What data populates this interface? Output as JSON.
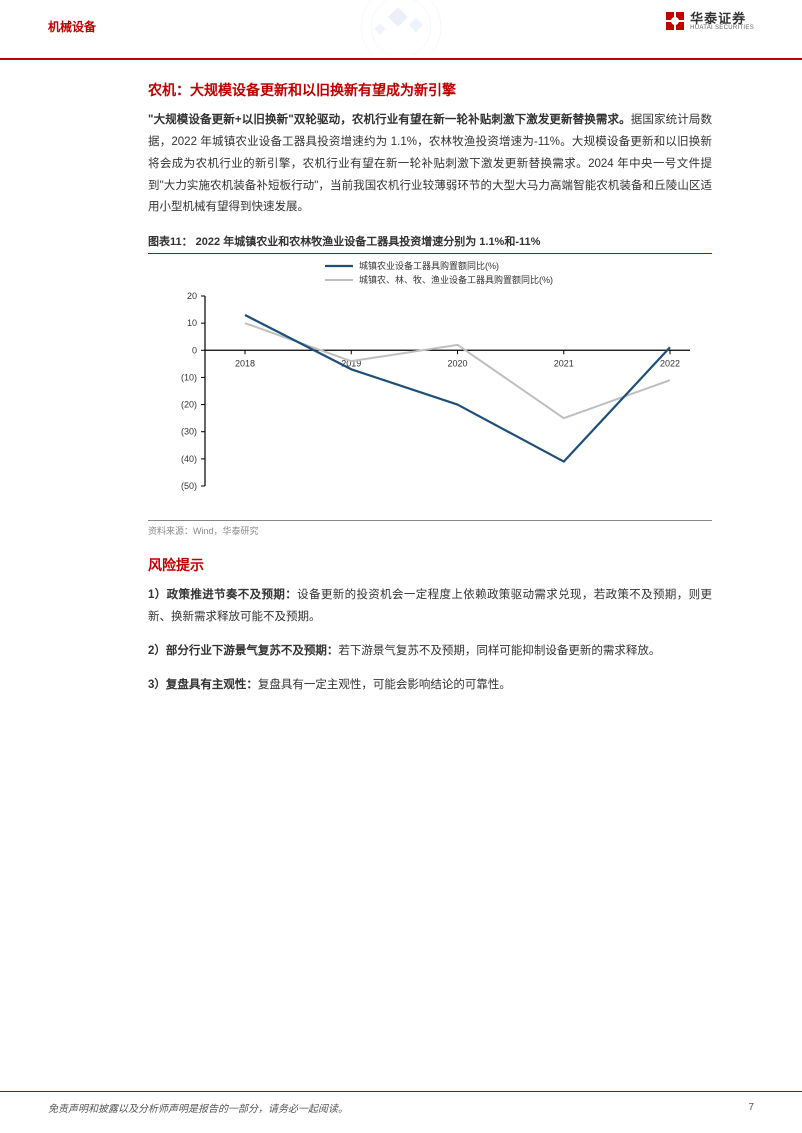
{
  "header": {
    "category": "机械设备",
    "logo_cn": "华泰证券",
    "logo_en": "HUATAI SECURITIES"
  },
  "section1": {
    "title": "农机：大规模设备更新和以旧换新有望成为新引擎",
    "para_bold": "\"大规模设备更新+以旧换新\"双轮驱动，农机行业有望在新一轮补贴刺激下激发更新替换需求。",
    "para_rest": "据国家统计局数据，2022 年城镇农业设备工器具投资增速约为 1.1%，农林牧渔投资增速为-11%。大规模设备更新和以旧换新将会成为农机行业的新引擎，农机行业有望在新一轮补贴刺激下激发更新替换需求。2024 年中央一号文件提到\"大力实施农机装备补短板行动\"，当前我国农机行业较薄弱环节的大型大马力高端智能农机装备和丘陵山区适用小型机械有望得到快速发展。"
  },
  "chart": {
    "title": "图表11：  2022 年城镇农业和农林牧渔业设备工器具投资增速分别为 1.1%和-11%",
    "source": "资料来源：Wind，华泰研究",
    "type": "line",
    "x_categories": [
      "2018",
      "2019",
      "2020",
      "2021",
      "2022"
    ],
    "y_ticks": [
      20,
      10,
      0,
      -10,
      -20,
      -30,
      -40,
      -50
    ],
    "y_tick_labels": [
      "20",
      "10",
      "0",
      "(10)",
      "(20)",
      "(30)",
      "(40)",
      "(50)"
    ],
    "ylim": [
      -50,
      20
    ],
    "series": [
      {
        "name": "城镇农业设备工器具购置额同比(%)",
        "color": "#1f4e79",
        "width": 2.2,
        "values": [
          13,
          -7,
          -20,
          -41,
          1.1
        ]
      },
      {
        "name": "城镇农、林、牧、渔业设备工器具购置额同比(%)",
        "color": "#bfbfbf",
        "width": 2,
        "values": [
          10,
          -4,
          2,
          -25,
          -11
        ]
      }
    ],
    "legend_fontsize": 9,
    "axis_fontsize": 9,
    "background_color": "#ffffff",
    "axis_color": "#000000"
  },
  "risk": {
    "title": "风险提示",
    "items": [
      {
        "label": "1）政策推进节奏不及预期：",
        "text": "设备更新的投资机会一定程度上依赖政策驱动需求兑现，若政策不及预期，则更新、换新需求释放可能不及预期。"
      },
      {
        "label": "2）部分行业下游景气复苏不及预期：",
        "text": "若下游景气复苏不及预期，同样可能抑制设备更新的需求释放。"
      },
      {
        "label": "3）复盘具有主观性：",
        "text": "复盘具有一定主观性，可能会影响结论的可靠性。"
      }
    ]
  },
  "footer": {
    "disclaimer": "免责声明和披露以及分析师声明是报告的一部分，请务必一起阅读。",
    "page": "7"
  }
}
